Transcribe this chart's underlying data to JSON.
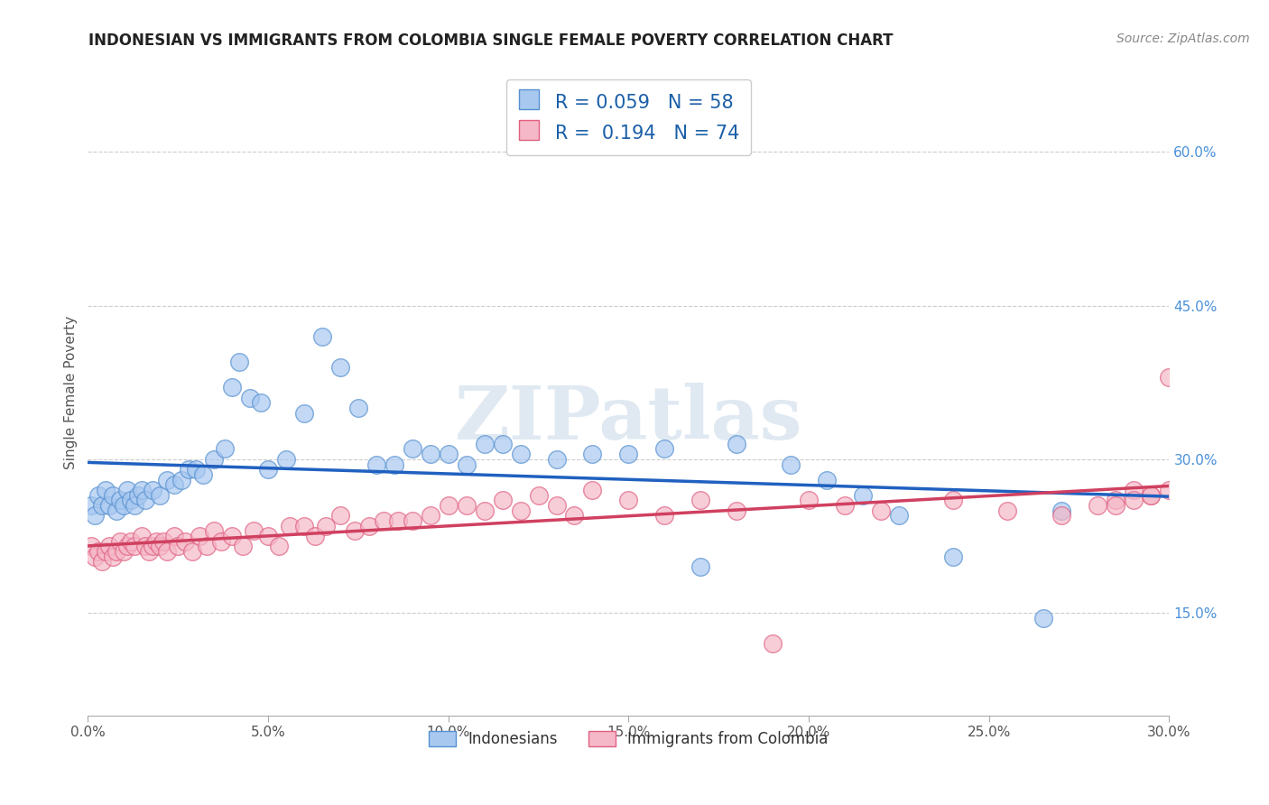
{
  "title": "INDONESIAN VS IMMIGRANTS FROM COLOMBIA SINGLE FEMALE POVERTY CORRELATION CHART",
  "source": "Source: ZipAtlas.com",
  "ylabel": "Single Female Poverty",
  "legend_label1": "Indonesians",
  "legend_label2": "Immigrants from Colombia",
  "R1": 0.059,
  "N1": 58,
  "R2": 0.194,
  "N2": 74,
  "blue_color": "#a8c8f0",
  "pink_color": "#f5b8c8",
  "blue_edge_color": "#5590d0",
  "pink_edge_color": "#e06080",
  "blue_line_color": "#2060c0",
  "pink_line_color": "#d04060",
  "x_min": 0.0,
  "x_max": 0.3,
  "y_min": 0.05,
  "y_max": 0.68,
  "right_yticks": [
    0.15,
    0.3,
    0.45,
    0.6
  ],
  "right_yticklabels": [
    "15.0%",
    "30.0%",
    "45.0%",
    "60.0%"
  ],
  "x_ticks": [
    0.0,
    0.05,
    0.1,
    0.15,
    0.2,
    0.25,
    0.3
  ],
  "x_ticklabels": [
    "0.0%",
    "5.0%",
    "10.0%",
    "15.0%",
    "20.0%",
    "25.0%",
    "30.0%"
  ],
  "blue_x": [
    0.001,
    0.002,
    0.003,
    0.004,
    0.005,
    0.006,
    0.007,
    0.008,
    0.009,
    0.01,
    0.011,
    0.012,
    0.013,
    0.014,
    0.015,
    0.016,
    0.018,
    0.02,
    0.022,
    0.024,
    0.026,
    0.028,
    0.03,
    0.032,
    0.035,
    0.038,
    0.04,
    0.042,
    0.045,
    0.048,
    0.05,
    0.055,
    0.06,
    0.065,
    0.07,
    0.075,
    0.08,
    0.085,
    0.09,
    0.095,
    0.1,
    0.105,
    0.11,
    0.115,
    0.12,
    0.13,
    0.14,
    0.15,
    0.16,
    0.17,
    0.18,
    0.195,
    0.205,
    0.215,
    0.225,
    0.24,
    0.265,
    0.27
  ],
  "blue_y": [
    0.255,
    0.245,
    0.265,
    0.255,
    0.27,
    0.255,
    0.265,
    0.25,
    0.26,
    0.255,
    0.27,
    0.26,
    0.255,
    0.265,
    0.27,
    0.26,
    0.27,
    0.265,
    0.28,
    0.275,
    0.28,
    0.29,
    0.29,
    0.285,
    0.3,
    0.31,
    0.37,
    0.395,
    0.36,
    0.355,
    0.29,
    0.3,
    0.345,
    0.42,
    0.39,
    0.35,
    0.295,
    0.295,
    0.31,
    0.305,
    0.305,
    0.295,
    0.315,
    0.315,
    0.305,
    0.3,
    0.305,
    0.305,
    0.31,
    0.195,
    0.315,
    0.295,
    0.28,
    0.265,
    0.245,
    0.205,
    0.145,
    0.25
  ],
  "pink_x": [
    0.001,
    0.002,
    0.003,
    0.004,
    0.005,
    0.006,
    0.007,
    0.008,
    0.009,
    0.01,
    0.011,
    0.012,
    0.013,
    0.015,
    0.016,
    0.017,
    0.018,
    0.019,
    0.02,
    0.021,
    0.022,
    0.024,
    0.025,
    0.027,
    0.029,
    0.031,
    0.033,
    0.035,
    0.037,
    0.04,
    0.043,
    0.046,
    0.05,
    0.053,
    0.056,
    0.06,
    0.063,
    0.066,
    0.07,
    0.074,
    0.078,
    0.082,
    0.086,
    0.09,
    0.095,
    0.1,
    0.105,
    0.11,
    0.115,
    0.12,
    0.125,
    0.13,
    0.135,
    0.14,
    0.15,
    0.16,
    0.17,
    0.18,
    0.19,
    0.2,
    0.21,
    0.22,
    0.24,
    0.255,
    0.27,
    0.28,
    0.285,
    0.29,
    0.295,
    0.3,
    0.3,
    0.295,
    0.29,
    0.285
  ],
  "pink_y": [
    0.215,
    0.205,
    0.21,
    0.2,
    0.21,
    0.215,
    0.205,
    0.21,
    0.22,
    0.21,
    0.215,
    0.22,
    0.215,
    0.225,
    0.215,
    0.21,
    0.215,
    0.22,
    0.215,
    0.22,
    0.21,
    0.225,
    0.215,
    0.22,
    0.21,
    0.225,
    0.215,
    0.23,
    0.22,
    0.225,
    0.215,
    0.23,
    0.225,
    0.215,
    0.235,
    0.235,
    0.225,
    0.235,
    0.245,
    0.23,
    0.235,
    0.24,
    0.24,
    0.24,
    0.245,
    0.255,
    0.255,
    0.25,
    0.26,
    0.25,
    0.265,
    0.255,
    0.245,
    0.27,
    0.26,
    0.245,
    0.26,
    0.25,
    0.12,
    0.26,
    0.255,
    0.25,
    0.26,
    0.25,
    0.245,
    0.255,
    0.26,
    0.27,
    0.265,
    0.38,
    0.27,
    0.265,
    0.26,
    0.255
  ],
  "watermark": "ZIPatlas",
  "background_color": "#ffffff",
  "grid_color": "#cccccc",
  "title_fontsize": 12,
  "source_fontsize": 10,
  "tick_fontsize": 11,
  "ylabel_fontsize": 11
}
